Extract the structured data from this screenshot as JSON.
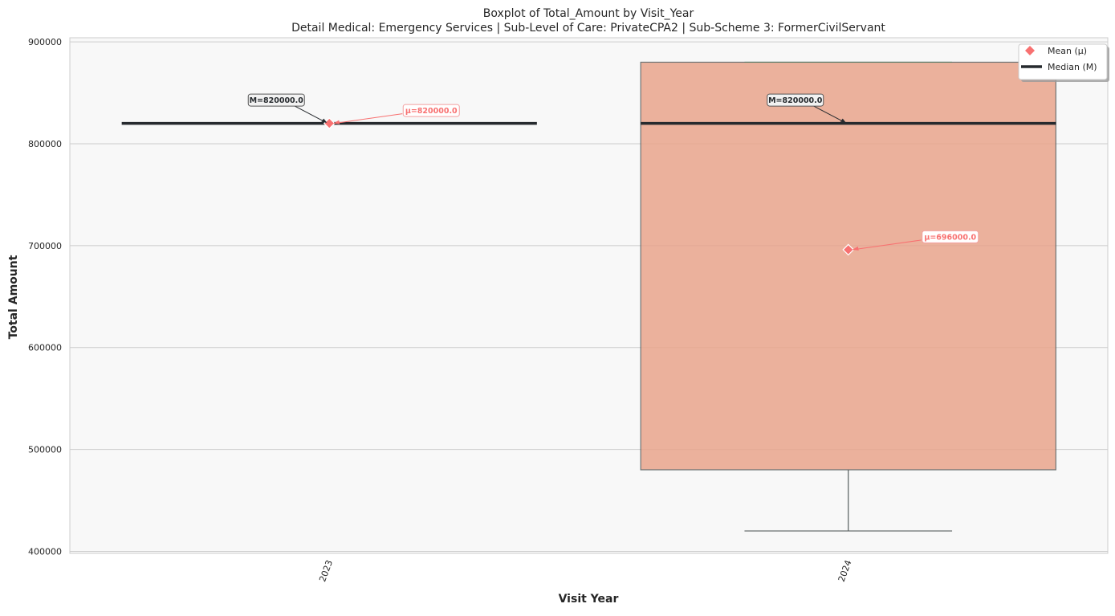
{
  "chart_data": {
    "type": "box",
    "title": "Boxplot of Total_Amount by Visit_Year",
    "subtitle": "Detail Medical: Emergency Services | Sub-Level of Care: PrivateCPA2 | Sub-Scheme 3: FormerCivilServant",
    "xlabel": "Visit Year",
    "ylabel": "Total Amount",
    "ylim": [
      398000,
      904000
    ],
    "yticks": [
      400000,
      500000,
      600000,
      700000,
      800000,
      900000
    ],
    "ytick_labels": [
      "400000",
      "500000",
      "600000",
      "700000",
      "800000",
      "900000"
    ],
    "grid": true,
    "legend_position": "top-right",
    "legend": [
      {
        "label": "Mean (μ)",
        "marker": "diamond",
        "color": "#f87171"
      },
      {
        "label": "Median (M)",
        "marker": "line",
        "color": "#262a2e"
      }
    ],
    "categories": [
      "2023",
      "2024"
    ],
    "boxes": [
      {
        "category": "2023",
        "whisker_low": 820000,
        "q1": 820000,
        "median": 820000,
        "q3": 820000,
        "whisker_high": 820000,
        "mean": 820000,
        "median_label": "M=820000.0",
        "mean_label": "μ=820000.0",
        "fill": "#e9a58c"
      },
      {
        "category": "2024",
        "whisker_low": 420000,
        "q1": 480000,
        "median": 820000,
        "q3": 880000,
        "whisker_high": 880000,
        "mean": 696000,
        "median_label": "M=820000.0",
        "mean_label": "μ=696000.0",
        "fill": "#e9a58c"
      }
    ]
  }
}
